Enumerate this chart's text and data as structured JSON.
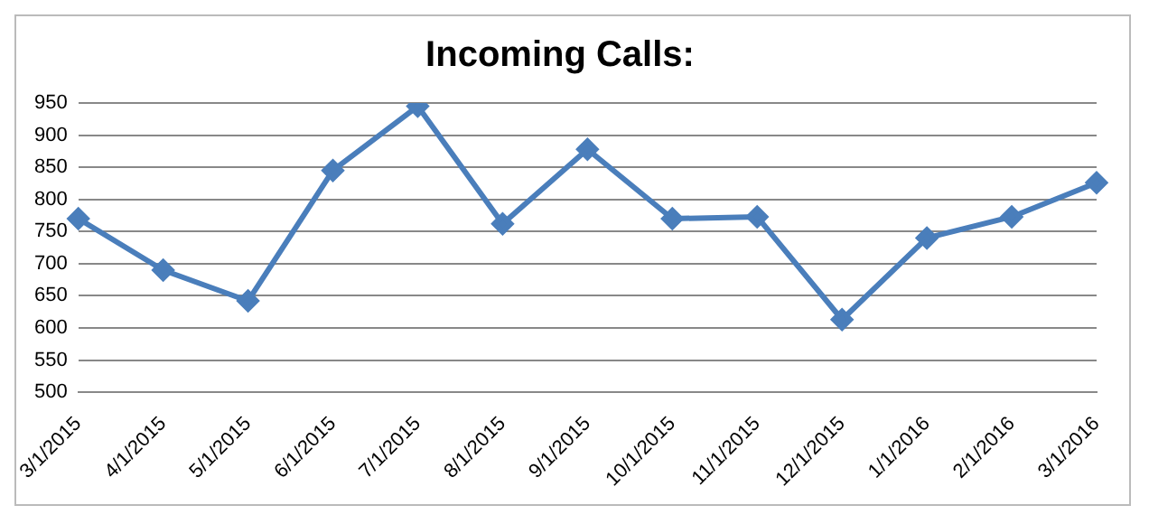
{
  "chart_data": {
    "type": "line",
    "title": "Incoming Calls:",
    "categories": [
      "3/1/2015",
      "4/1/2015",
      "5/1/2015",
      "6/1/2015",
      "7/1/2015",
      "8/1/2015",
      "9/1/2015",
      "10/1/2015",
      "11/1/2015",
      "12/1/2015",
      "1/1/2016",
      "2/1/2016",
      "3/1/2016"
    ],
    "series": [
      {
        "color": "#4a7ebb",
        "values": [
          770,
          690,
          642,
          845,
          945,
          762,
          878,
          770,
          773,
          613,
          740,
          773,
          826
        ]
      }
    ],
    "ylim": [
      500,
      950
    ],
    "yticks": [
      500,
      550,
      600,
      650,
      700,
      750,
      800,
      850,
      900,
      950
    ],
    "grid": "y",
    "legend": false,
    "marker": "diamond",
    "line_style": "solid"
  }
}
